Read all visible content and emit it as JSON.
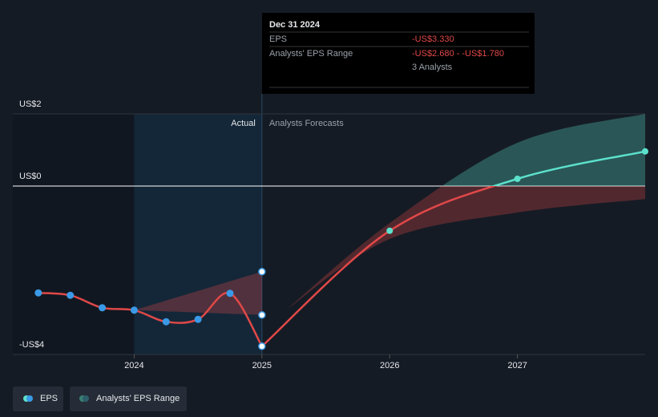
{
  "chart_data": {
    "type": "line",
    "xlim": [
      2023.05,
      2028
    ],
    "xticks": [
      2024,
      2025,
      2026,
      2027
    ],
    "ylim": [
      -3.5,
      1.5
    ],
    "yticks": [
      {
        "value": 2,
        "label": "US$2"
      },
      {
        "value": 0,
        "label": "US$0"
      },
      {
        "value": -4,
        "label": "-US$4"
      }
    ],
    "actual_label": "Actual",
    "forecast_label": "Analysts Forecasts",
    "series": [
      {
        "name": "EPS",
        "color": "#e04848",
        "above_color": "#5ce1cc",
        "marker_color": "#3a9ae8",
        "x": [
          2023.25,
          2023.5,
          2023.75,
          2024.0,
          2024.25,
          2024.5,
          2024.75,
          2025.0
        ],
        "values": [
          -2.22,
          -2.27,
          -2.53,
          -2.58,
          -2.82,
          -2.77,
          -2.23,
          -3.33
        ],
        "forecast": {
          "x": [
            2026,
            2027,
            2028
          ],
          "values": [
            -0.93,
            0.15,
            0.72
          ]
        }
      },
      {
        "name": "Analysts' EPS Range",
        "color": "#e04848",
        "above_color": "#5ce1cc",
        "pieces": [
          {
            "x": [
              2024,
              2025
            ],
            "low": [
              -2.58,
              -2.68
            ],
            "high": [
              -2.58,
              -1.78
            ]
          },
          {
            "x": [
              2025.2,
              2026,
              2027,
              2028
            ],
            "low": [
              -2.55,
              -1.1,
              -0.55,
              -0.27
            ],
            "high": [
              -2.55,
              -0.77,
              0.9,
              1.5
            ]
          }
        ]
      }
    ],
    "tooltip": {
      "date": "Dec 31 2024",
      "eps_label": "EPS",
      "eps_value": "-US$3.330",
      "range_label": "Analysts' EPS Range",
      "range_value": "-US$2.680 - -US$1.780",
      "analysts": "3 Analysts"
    }
  }
}
